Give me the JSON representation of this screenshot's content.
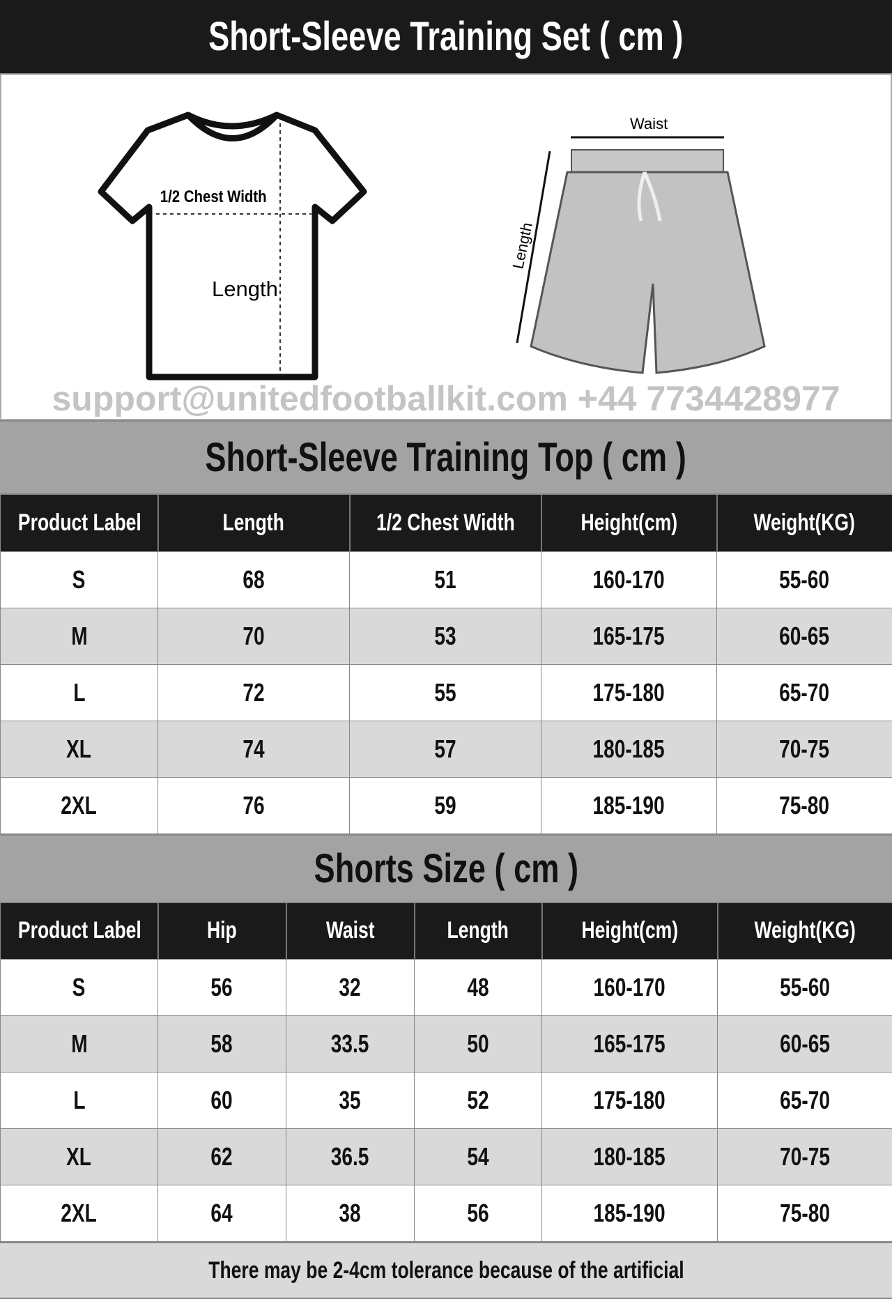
{
  "title": "Short-Sleeve Training Set ( cm )",
  "illustration": {
    "chest_label": "1/2 Chest Width",
    "length_label": "Length",
    "waist_label": "Waist",
    "shorts_length_label": "Length"
  },
  "top_table": {
    "title": "Short-Sleeve Training Top ( cm )",
    "headers": [
      "Product Label",
      "Length",
      "1/2 Chest Width",
      "Height(cm)",
      "Weight(KG)"
    ],
    "rows": [
      [
        "S",
        "68",
        "51",
        "160-170",
        "55-60"
      ],
      [
        "M",
        "70",
        "53",
        "165-175",
        "60-65"
      ],
      [
        "L",
        "72",
        "55",
        "175-180",
        "65-70"
      ],
      [
        "XL",
        "74",
        "57",
        "180-185",
        "70-75"
      ],
      [
        "2XL",
        "76",
        "59",
        "185-190",
        "75-80"
      ]
    ]
  },
  "shorts_table": {
    "title": "Shorts Size ( cm )",
    "headers": [
      "Product Label",
      "Hip",
      "Waist",
      "Length",
      "Height(cm)",
      "Weight(KG)"
    ],
    "rows": [
      [
        "S",
        "56",
        "32",
        "48",
        "160-170",
        "55-60"
      ],
      [
        "M",
        "58",
        "33.5",
        "50",
        "165-175",
        "60-65"
      ],
      [
        "L",
        "60",
        "35",
        "52",
        "175-180",
        "65-70"
      ],
      [
        "XL",
        "62",
        "36.5",
        "54",
        "180-185",
        "70-75"
      ],
      [
        "2XL",
        "64",
        "38",
        "56",
        "185-190",
        "75-80"
      ]
    ]
  },
  "footer": "There may be 2-4cm tolerance because of the artificial",
  "watermark": "support@unitedfootballkit.com  +44 7734428977"
}
